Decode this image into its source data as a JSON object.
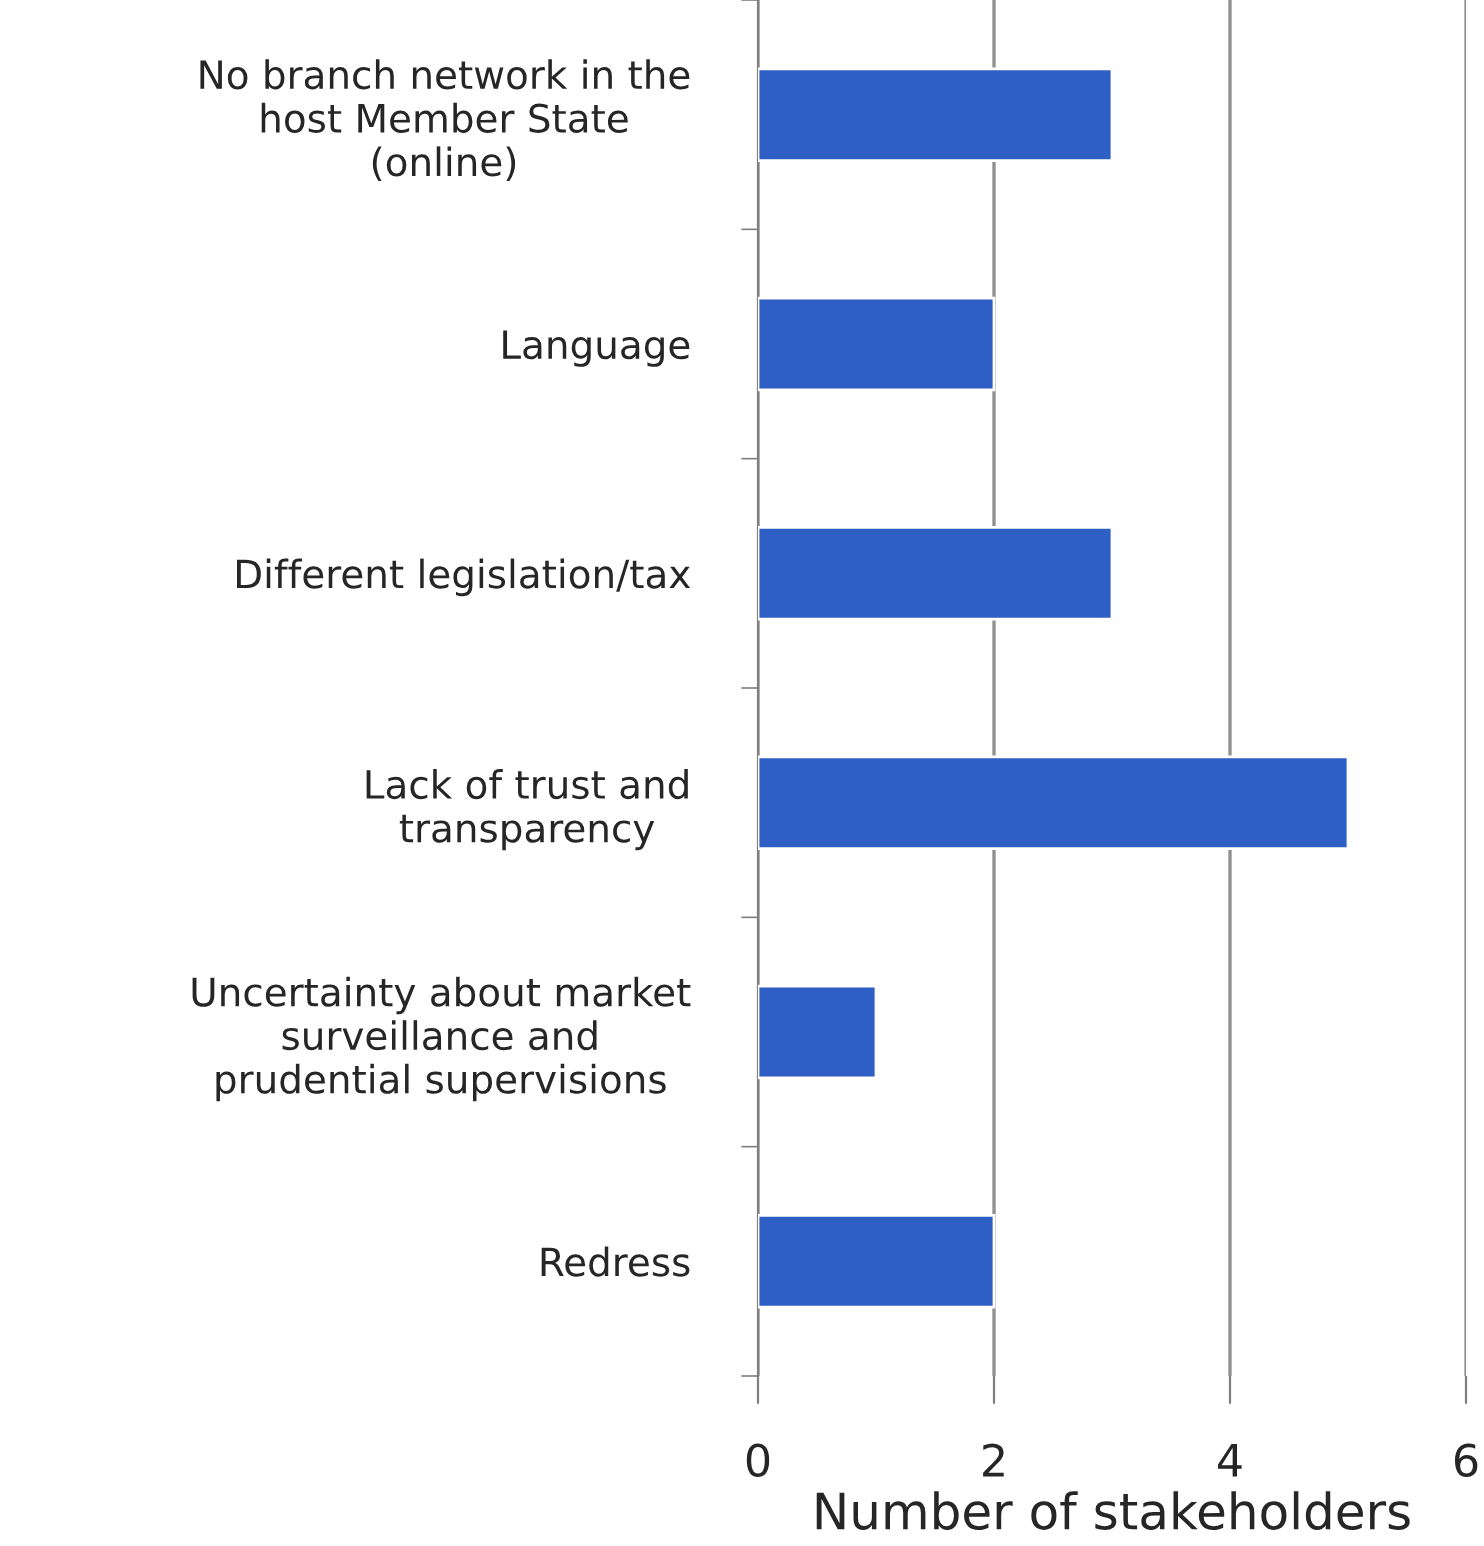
{
  "chart_data": {
    "type": "bar",
    "orientation": "horizontal",
    "xlabel": "Number of stakeholders",
    "categories": [
      "No branch network in the\nhost Member State\n(online)",
      "Language",
      "Different legislation/tax",
      "Lack of trust and\ntransparency",
      "Uncertainty about market\nsurveillance and\nprudential supervisions",
      "Redress"
    ],
    "values": [
      3,
      2,
      3,
      5,
      1,
      2
    ],
    "color": "#2e5fc4",
    "xlim": [
      0,
      6
    ],
    "xticks": [
      0,
      2,
      4,
      6
    ],
    "grid": "x"
  }
}
